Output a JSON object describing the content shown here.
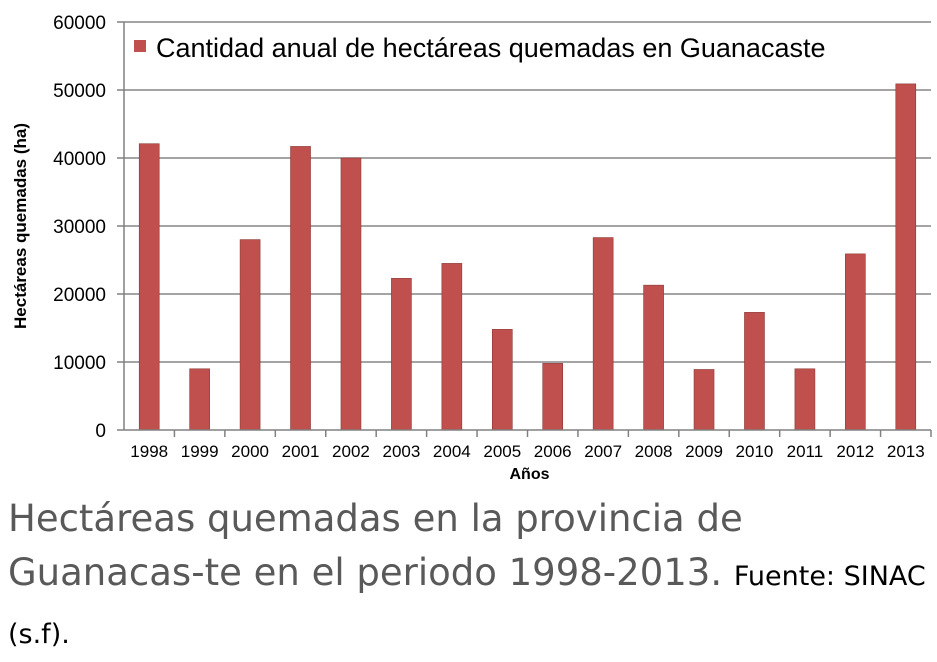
{
  "chart_data": {
    "type": "bar",
    "categories": [
      "1998",
      "1999",
      "2000",
      "2001",
      "2002",
      "2003",
      "2004",
      "2005",
      "2006",
      "2007",
      "2008",
      "2009",
      "2010",
      "2011",
      "2012",
      "2013"
    ],
    "series": [
      {
        "name": "Cantidad anual de hectáreas quemadas en Guanacaste",
        "color": "#c0504d",
        "values": [
          42100,
          9000,
          28000,
          41700,
          40000,
          22300,
          24500,
          14800,
          9800,
          28300,
          21300,
          8900,
          17300,
          9000,
          25900,
          50900
        ]
      }
    ],
    "xlabel": "Años",
    "ylabel": "Hectáreas quemadas (ha)",
    "ylim": [
      0,
      60000
    ],
    "yticks": [
      0,
      10000,
      20000,
      30000,
      40000,
      50000,
      60000
    ],
    "grid": true,
    "legend_position": "top-right"
  },
  "caption": {
    "text": "Hectáreas quemadas en la provincia de Guanacas-te en el periodo 1998-2013.",
    "source": "Fuente: SINAC (s.f)."
  }
}
